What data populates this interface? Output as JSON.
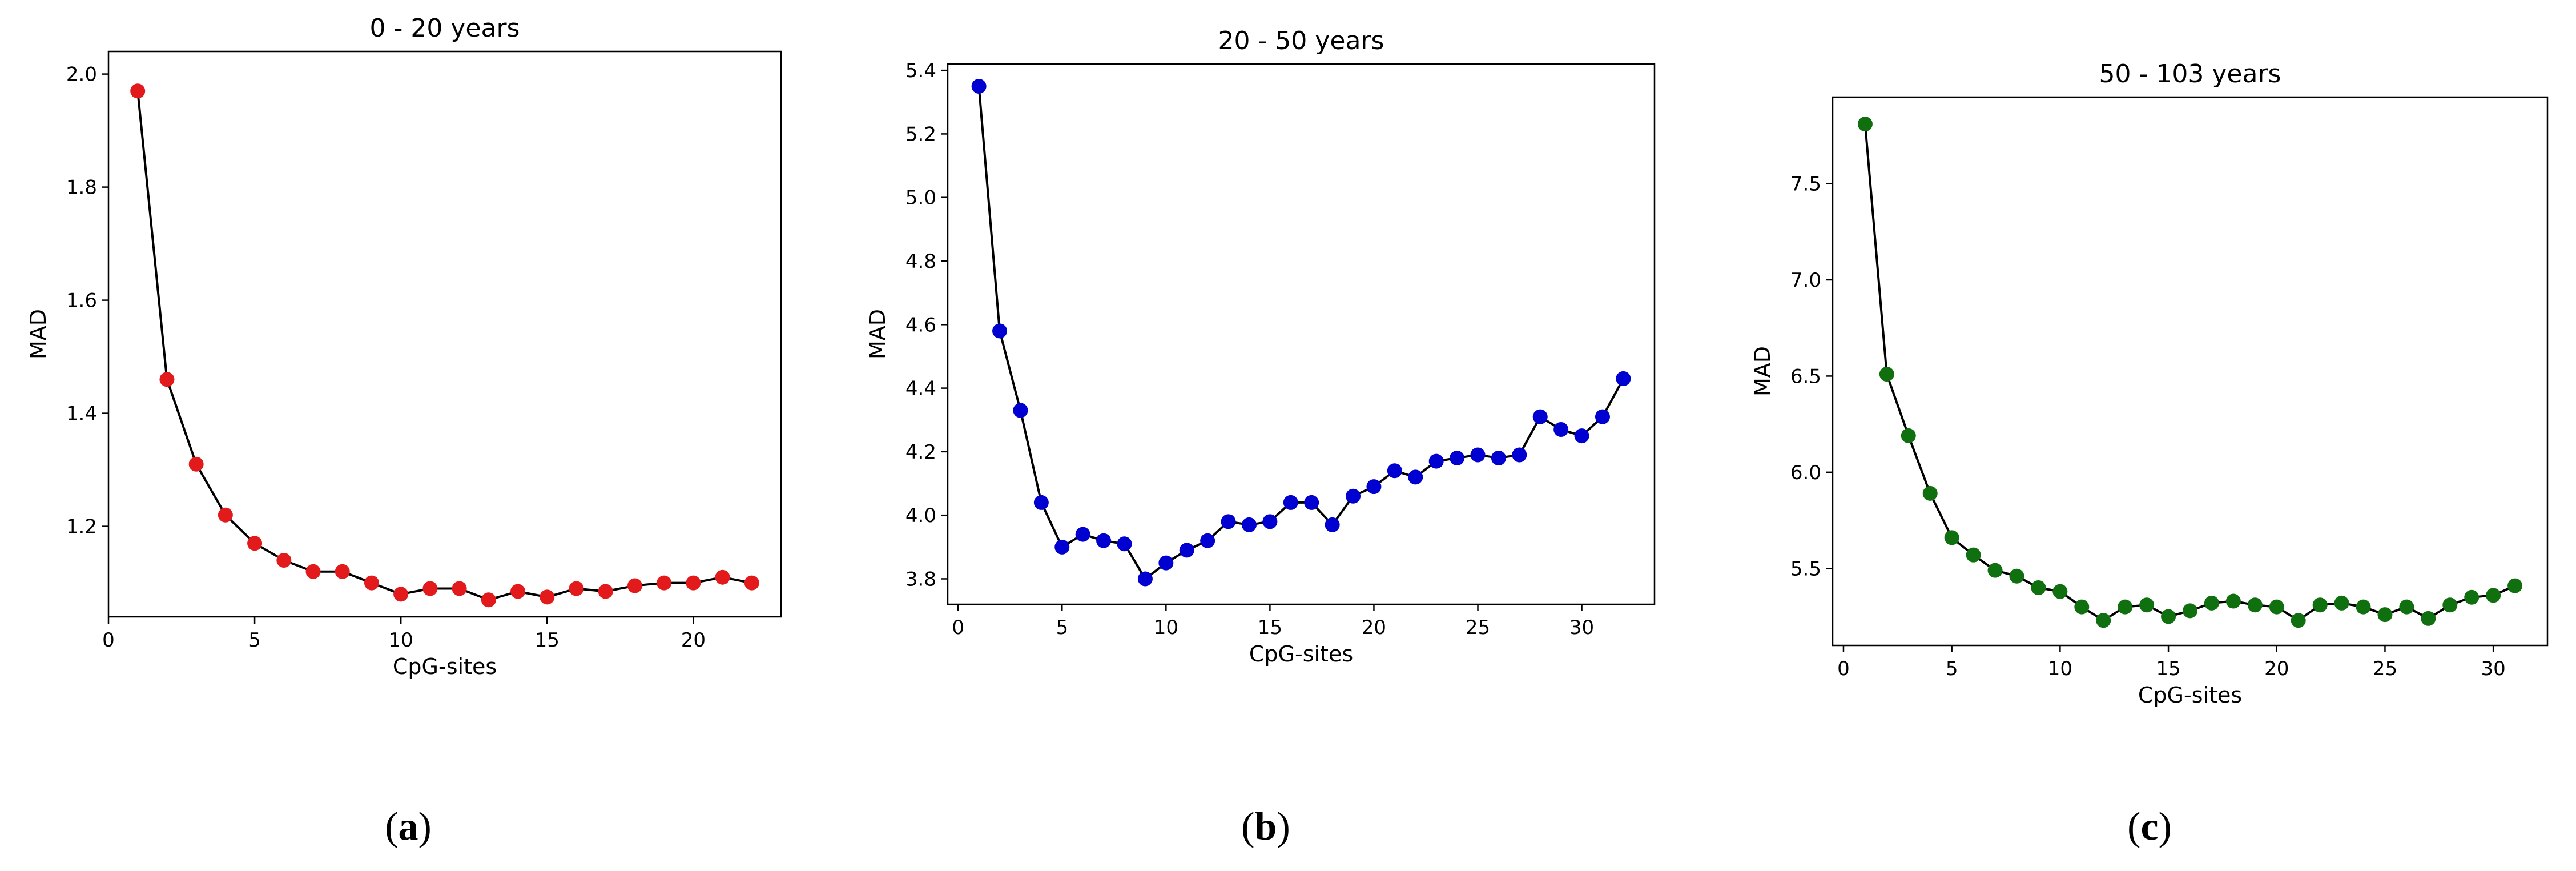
{
  "chart_data": [
    {
      "type": "line",
      "title": "0 - 20 years",
      "xlabel": "CpG-sites",
      "ylabel": "MAD",
      "panel_label": "a",
      "xlim": [
        0,
        23
      ],
      "ylim": [
        1.04,
        2.04
      ],
      "xticks": [
        0,
        5,
        10,
        15,
        20
      ],
      "yticks": [
        1.2,
        1.4,
        1.6,
        1.8,
        2.0
      ],
      "ytick_labels": [
        "1.2",
        "1.4",
        "1.6",
        "1.8",
        "2.0"
      ],
      "marker_color": "#e31a1c",
      "line_color": "#000000",
      "x": [
        1,
        2,
        3,
        4,
        5,
        6,
        7,
        8,
        9,
        10,
        11,
        12,
        13,
        14,
        15,
        16,
        17,
        18,
        19,
        20,
        21,
        22
      ],
      "values": [
        1.97,
        1.46,
        1.31,
        1.22,
        1.17,
        1.14,
        1.12,
        1.12,
        1.1,
        1.08,
        1.09,
        1.09,
        1.07,
        1.085,
        1.075,
        1.09,
        1.085,
        1.095,
        1.1,
        1.1,
        1.11,
        1.1
      ]
    },
    {
      "type": "line",
      "title": "20 - 50 years",
      "xlabel": "CpG-sites",
      "ylabel": "MAD",
      "panel_label": "b",
      "xlim": [
        -0.5,
        33.5
      ],
      "ylim": [
        3.72,
        5.42
      ],
      "xticks": [
        0,
        5,
        10,
        15,
        20,
        25,
        30
      ],
      "yticks": [
        3.8,
        4.0,
        4.2,
        4.4,
        4.6,
        4.8,
        5.0,
        5.2,
        5.4
      ],
      "ytick_labels": [
        "3.8",
        "4.0",
        "4.2",
        "4.4",
        "4.6",
        "4.8",
        "5.0",
        "5.2",
        "5.4"
      ],
      "marker_color": "#0000d0",
      "line_color": "#000000",
      "x": [
        1,
        2,
        3,
        4,
        5,
        6,
        7,
        8,
        9,
        10,
        11,
        12,
        13,
        14,
        15,
        16,
        17,
        18,
        19,
        20,
        21,
        22,
        23,
        24,
        25,
        26,
        27,
        28,
        29,
        30,
        31,
        32
      ],
      "values": [
        5.35,
        4.58,
        4.33,
        4.04,
        3.9,
        3.94,
        3.92,
        3.91,
        3.8,
        3.85,
        3.89,
        3.92,
        3.98,
        3.97,
        3.98,
        4.04,
        4.04,
        3.97,
        4.06,
        4.09,
        4.14,
        4.12,
        4.17,
        4.18,
        4.19,
        4.18,
        4.19,
        4.31,
        4.27,
        4.25,
        4.31,
        4.43
      ]
    },
    {
      "type": "line",
      "title": "50 - 103 years",
      "xlabel": "CpG-sites",
      "ylabel": "MAD",
      "panel_label": "c",
      "xlim": [
        -0.5,
        32.5
      ],
      "ylim": [
        5.1,
        7.95
      ],
      "xticks": [
        0,
        5,
        10,
        15,
        20,
        25,
        30
      ],
      "yticks": [
        5.5,
        6.0,
        6.5,
        7.0,
        7.5
      ],
      "ytick_labels": [
        "5.5",
        "6.0",
        "6.5",
        "7.0",
        "7.5"
      ],
      "marker_color": "#107010",
      "line_color": "#000000",
      "x": [
        1,
        2,
        3,
        4,
        5,
        6,
        7,
        8,
        9,
        10,
        11,
        12,
        13,
        14,
        15,
        16,
        17,
        18,
        19,
        20,
        21,
        22,
        23,
        24,
        25,
        26,
        27,
        28,
        29,
        30,
        31
      ],
      "values": [
        7.81,
        6.51,
        6.19,
        5.89,
        5.66,
        5.57,
        5.49,
        5.46,
        5.4,
        5.38,
        5.3,
        5.23,
        5.3,
        5.31,
        5.25,
        5.28,
        5.32,
        5.33,
        5.31,
        5.3,
        5.23,
        5.31,
        5.32,
        5.3,
        5.26,
        5.3,
        5.24,
        5.31,
        5.35,
        5.36,
        5.41
      ]
    }
  ]
}
